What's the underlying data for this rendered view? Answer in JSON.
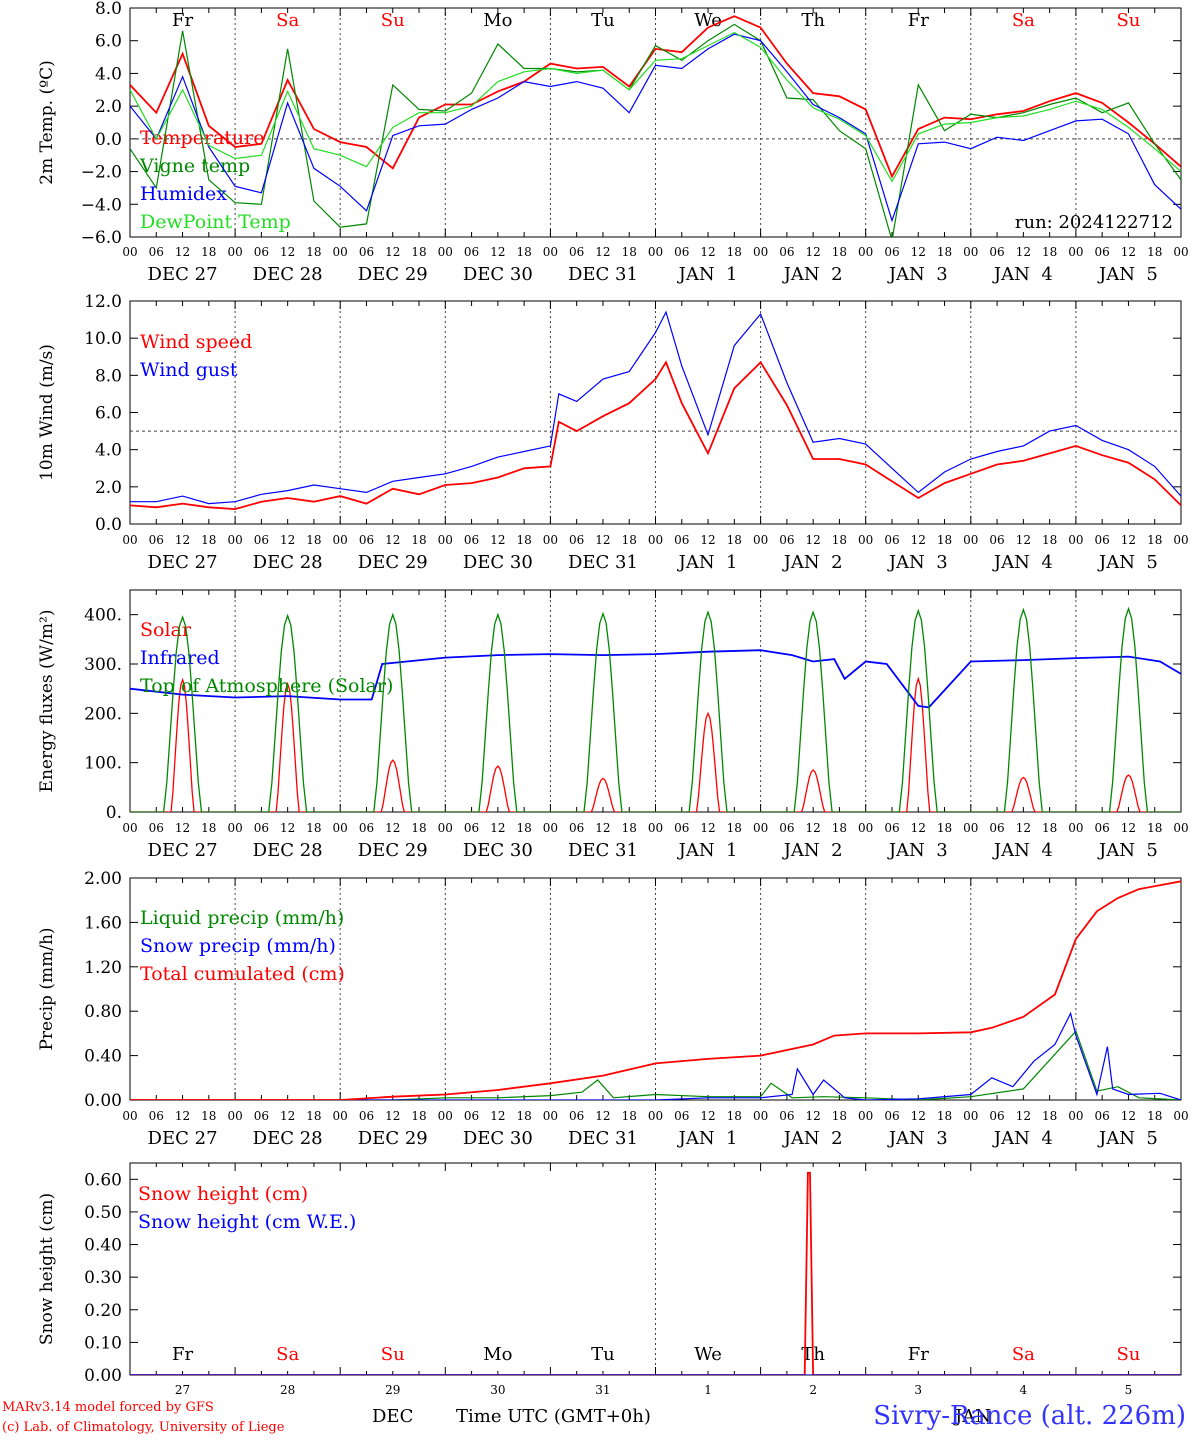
{
  "colors": {
    "red": "#ff0000",
    "green": "#008800",
    "blue": "#0000ff",
    "lime": "#22dd22",
    "black": "#000000"
  },
  "x_axis": {
    "hour_ticks": [
      "00",
      "06",
      "12",
      "18"
    ],
    "date_labels": [
      "DEC 27",
      "DEC 28",
      "DEC 29",
      "DEC 30",
      "DEC 31",
      "JAN  1",
      "JAN  2",
      "JAN  3",
      "JAN  4",
      "JAN  5"
    ],
    "weekdays": [
      "Fr",
      "Sa",
      "Su",
      "Mo",
      "Tu",
      "We",
      "Th",
      "Fr",
      "Sa",
      "Su"
    ],
    "weekend_flags": [
      false,
      true,
      true,
      false,
      false,
      false,
      false,
      false,
      true,
      true
    ],
    "day_numbers": [
      "27",
      "28",
      "29",
      "30",
      "31",
      "1",
      "2",
      "3",
      "4",
      "5"
    ],
    "span_days": 10
  },
  "footer": {
    "model": "MARv3.14 model forced by GFS",
    "credit": "(c) Lab. of Climatology, University of Liege",
    "month_dec": "DEC",
    "month_jan": "JAN",
    "axis_title": "Time UTC (GMT+0h)",
    "station": "Sivry-Rance (alt. 226m)"
  },
  "chart_data": [
    {
      "type": "line",
      "ylabel": "2m Temp. (ºC)",
      "ylim": [
        -6,
        8
      ],
      "yticks": [
        "8.0",
        "6.0",
        "4.0",
        "2.0",
        "0.0",
        "−2.0",
        "−4.0",
        "−6.0"
      ],
      "ytick_values": [
        8,
        6,
        4,
        2,
        0,
        -2,
        -4,
        -6
      ],
      "reference_line": 0,
      "run_label": "run: 2024122712",
      "series": [
        {
          "name": "Temperature",
          "color": "#ff0000",
          "x": [
            0,
            0.25,
            0.5,
            0.75,
            1,
            1.25,
            1.5,
            1.75,
            2,
            2.25,
            2.5,
            2.75,
            3,
            3.25,
            3.5,
            3.75,
            4,
            4.25,
            4.5,
            4.75,
            5,
            5.25,
            5.5,
            5.75,
            6,
            6.25,
            6.5,
            6.75,
            7,
            7.25,
            7.5,
            7.75,
            8,
            8.25,
            8.5,
            8.75,
            9,
            9.25,
            9.5,
            9.75,
            10
          ],
          "y": [
            3.3,
            1.6,
            5.2,
            0.8,
            -0.5,
            -0.3,
            3.6,
            0.6,
            -0.2,
            -0.5,
            -1.8,
            1.3,
            2.1,
            2.1,
            2.9,
            3.5,
            4.6,
            4.3,
            4.4,
            3.2,
            5.5,
            5.3,
            6.8,
            7.5,
            6.8,
            4.6,
            2.8,
            2.6,
            1.8,
            -2.3,
            0.6,
            1.3,
            1.2,
            1.5,
            1.7,
            2.3,
            2.8,
            2.2,
            1.0,
            -0.3,
            -1.7
          ]
        },
        {
          "name": "Vigne temp",
          "color": "#008800",
          "x": [
            0,
            0.25,
            0.5,
            0.75,
            1,
            1.25,
            1.5,
            1.75,
            2,
            2.25,
            2.5,
            2.75,
            3,
            3.25,
            3.5,
            3.75,
            4,
            4.25,
            4.5,
            4.75,
            5,
            5.25,
            5.5,
            5.75,
            6,
            6.25,
            6.5,
            6.75,
            7,
            7.25,
            7.5,
            7.75,
            8,
            8.25,
            8.5,
            8.75,
            9,
            9.25,
            9.5,
            9.75,
            10
          ],
          "y": [
            -0.6,
            -3.0,
            6.6,
            -2.5,
            -3.9,
            -4.0,
            5.5,
            -3.8,
            -5.4,
            -5.2,
            3.3,
            1.8,
            1.7,
            2.8,
            5.8,
            4.3,
            4.3,
            4.1,
            4.2,
            3.0,
            5.7,
            4.8,
            6.0,
            7.0,
            6.0,
            2.5,
            2.4,
            0.5,
            -0.6,
            -6.2,
            3.3,
            0.5,
            1.5,
            1.3,
            1.6,
            2.1,
            2.5,
            1.6,
            2.2,
            -0.3,
            -2.5
          ]
        },
        {
          "name": "Humidex",
          "color": "#0000ff",
          "x": [
            0,
            0.25,
            0.5,
            0.75,
            1,
            1.25,
            1.5,
            1.75,
            2,
            2.25,
            2.5,
            2.75,
            3,
            3.25,
            3.5,
            3.75,
            4,
            4.25,
            4.5,
            4.75,
            5,
            5.25,
            5.5,
            5.75,
            6,
            6.25,
            6.5,
            6.75,
            7,
            7.25,
            7.5,
            7.75,
            8,
            8.25,
            8.5,
            8.75,
            9,
            9.25,
            9.5,
            9.75,
            10
          ],
          "y": [
            2.0,
            0.0,
            3.8,
            -0.5,
            -2.9,
            -3.3,
            2.2,
            -1.8,
            -2.9,
            -4.4,
            0.2,
            0.8,
            0.9,
            1.8,
            2.5,
            3.5,
            3.2,
            3.5,
            3.1,
            1.6,
            4.5,
            4.3,
            5.5,
            6.4,
            6.0,
            4.1,
            2.1,
            1.3,
            0.3,
            -5.0,
            -0.3,
            -0.2,
            -0.6,
            0.1,
            -0.1,
            0.5,
            1.1,
            1.2,
            0.3,
            -2.8,
            -4.3
          ]
        },
        {
          "name": "DewPoint Temp",
          "color": "#22dd22",
          "x": [
            0,
            0.25,
            0.5,
            0.75,
            1,
            1.25,
            1.5,
            1.75,
            2,
            2.25,
            2.5,
            2.75,
            3,
            3.25,
            3.5,
            3.75,
            4,
            4.25,
            4.5,
            4.75,
            5,
            5.25,
            5.5,
            5.75,
            6,
            6.25,
            6.5,
            6.75,
            7,
            7.25,
            7.5,
            7.75,
            8,
            8.25,
            8.5,
            8.75,
            9,
            9.25,
            9.5,
            9.75,
            10
          ],
          "y": [
            3.0,
            0.0,
            3.0,
            -0.4,
            -1.2,
            -1.0,
            2.9,
            -0.6,
            -1.0,
            -1.7,
            0.7,
            1.6,
            1.6,
            2.0,
            3.5,
            4.1,
            4.3,
            4.0,
            4.2,
            3.0,
            4.8,
            4.9,
            5.7,
            6.5,
            5.6,
            3.6,
            1.9,
            1.2,
            0.2,
            -2.6,
            0.3,
            0.9,
            1.0,
            1.3,
            1.4,
            1.8,
            2.3,
            1.8,
            0.7,
            -0.6,
            -2.0
          ]
        }
      ]
    },
    {
      "type": "line",
      "ylabel": "10m Wind (m/s)",
      "ylim": [
        0,
        12
      ],
      "yticks": [
        "12.0",
        "10.0",
        "8.0",
        "6.0",
        "4.0",
        "2.0",
        "0.0"
      ],
      "ytick_values": [
        12,
        10,
        8,
        6,
        4,
        2,
        0
      ],
      "reference_line": 5,
      "series": [
        {
          "name": "Wind speed",
          "color": "#ff0000",
          "x": [
            0,
            0.25,
            0.5,
            0.75,
            1,
            1.25,
            1.5,
            1.75,
            2,
            2.25,
            2.5,
            2.75,
            3,
            3.25,
            3.5,
            3.75,
            4,
            4.08,
            4.25,
            4.5,
            4.75,
            5,
            5.1,
            5.25,
            5.5,
            5.75,
            6,
            6.25,
            6.5,
            6.75,
            7,
            7.25,
            7.5,
            7.75,
            8,
            8.25,
            8.5,
            8.75,
            9,
            9.25,
            9.5,
            9.75,
            10
          ],
          "y": [
            1.0,
            0.9,
            1.1,
            0.9,
            0.8,
            1.2,
            1.4,
            1.2,
            1.5,
            1.1,
            1.9,
            1.6,
            2.1,
            2.2,
            2.5,
            3.0,
            3.1,
            5.5,
            5.0,
            5.8,
            6.5,
            7.8,
            8.7,
            6.5,
            3.8,
            7.3,
            8.7,
            6.4,
            3.5,
            3.5,
            3.2,
            2.3,
            1.4,
            2.2,
            2.7,
            3.2,
            3.4,
            3.8,
            4.2,
            3.7,
            3.3,
            2.4,
            1.0
          ]
        },
        {
          "name": "Wind gust",
          "color": "#0000ff",
          "x": [
            0,
            0.25,
            0.5,
            0.75,
            1,
            1.25,
            1.5,
            1.75,
            2,
            2.25,
            2.5,
            2.75,
            3,
            3.25,
            3.5,
            3.75,
            4,
            4.08,
            4.25,
            4.5,
            4.75,
            5,
            5.1,
            5.25,
            5.5,
            5.75,
            6,
            6.25,
            6.5,
            6.75,
            7,
            7.25,
            7.5,
            7.75,
            8,
            8.25,
            8.5,
            8.75,
            9,
            9.25,
            9.5,
            9.75,
            10
          ],
          "y": [
            1.2,
            1.2,
            1.5,
            1.1,
            1.2,
            1.6,
            1.8,
            2.1,
            1.9,
            1.7,
            2.3,
            2.5,
            2.7,
            3.1,
            3.6,
            3.9,
            4.2,
            7.0,
            6.6,
            7.8,
            8.2,
            10.3,
            11.4,
            8.5,
            4.8,
            9.6,
            11.3,
            7.6,
            4.4,
            4.6,
            4.3,
            3.0,
            1.7,
            2.8,
            3.5,
            3.9,
            4.2,
            5.0,
            5.3,
            4.5,
            4.0,
            3.1,
            1.5
          ]
        }
      ]
    },
    {
      "type": "line",
      "ylabel": "Energy fluxes (W/m²)",
      "ylim": [
        0,
        450
      ],
      "yticks": [
        "400.",
        "300.",
        "200.",
        "100.",
        "0."
      ],
      "ytick_values": [
        400,
        300,
        200,
        100,
        0
      ],
      "series": [
        {
          "name": "Solar",
          "color": "#ff0000",
          "day_centers": [
            0.5,
            1.5,
            2.5,
            3.5,
            4.5,
            5.5,
            6.5,
            7.5,
            8.5,
            9.5
          ],
          "peaks": [
            268,
            260,
            105,
            93,
            68,
            200,
            85,
            270,
            70,
            75
          ]
        },
        {
          "name": "Infrared",
          "color": "#0000ff",
          "x": [
            0,
            0.5,
            1,
            1.5,
            2,
            2.3,
            2.4,
            3,
            3.5,
            4,
            4.5,
            5,
            5.3,
            5.5,
            6,
            6.3,
            6.5,
            6.7,
            6.8,
            7,
            7.2,
            7.5,
            7.6,
            8,
            8.5,
            9,
            9.5,
            9.8,
            10
          ],
          "y": [
            250,
            238,
            232,
            235,
            228,
            228,
            300,
            313,
            318,
            320,
            318,
            320,
            323,
            325,
            328,
            318,
            305,
            310,
            270,
            305,
            300,
            215,
            212,
            305,
            308,
            312,
            315,
            305,
            280
          ]
        },
        {
          "name": "Top of Atmosphere (Solar)",
          "color": "#008800",
          "day_centers": [
            0.5,
            1.5,
            2.5,
            3.5,
            4.5,
            5.5,
            6.5,
            7.5,
            8.5,
            9.5
          ],
          "peaks": [
            395,
            398,
            400,
            400,
            402,
            405,
            405,
            408,
            410,
            412
          ]
        }
      ]
    },
    {
      "type": "line",
      "ylabel": "Precip (mm/h)",
      "ylim": [
        0,
        2
      ],
      "yticks": [
        "2.00",
        "1.60",
        "1.20",
        "0.80",
        "0.40",
        "0.00"
      ],
      "ytick_values": [
        2.0,
        1.6,
        1.2,
        0.8,
        0.4,
        0.0
      ],
      "series": [
        {
          "name": "Liquid precip (mm/h)",
          "color": "#008800",
          "x": [
            0,
            2.5,
            3,
            3.5,
            4,
            4.3,
            4.45,
            4.6,
            5,
            5.5,
            6,
            6.1,
            6.3,
            6.6,
            7,
            7.5,
            8,
            8.5,
            9,
            9.2,
            9.4,
            9.6,
            10
          ],
          "y": [
            0,
            0,
            0.02,
            0.02,
            0.04,
            0.07,
            0.18,
            0.02,
            0.05,
            0.03,
            0.03,
            0.15,
            0.02,
            0.03,
            0.02,
            0.0,
            0.03,
            0.1,
            0.62,
            0.08,
            0.12,
            0.02,
            0.0
          ]
        },
        {
          "name": "Snow precip (mm/h)",
          "color": "#0000ff",
          "x": [
            0,
            5,
            5.5,
            6,
            6.3,
            6.35,
            6.5,
            6.6,
            6.8,
            7,
            7.5,
            8,
            8.2,
            8.4,
            8.6,
            8.8,
            8.95,
            9,
            9.2,
            9.3,
            9.35,
            9.5,
            9.8,
            10
          ],
          "y": [
            0,
            0,
            0.02,
            0.02,
            0.05,
            0.28,
            0.05,
            0.18,
            0.02,
            0.0,
            0.01,
            0.05,
            0.2,
            0.12,
            0.35,
            0.5,
            0.78,
            0.58,
            0.05,
            0.48,
            0.1,
            0.05,
            0.06,
            0.0
          ]
        },
        {
          "name": "Total cumulated (cm)",
          "color": "#ff0000",
          "x": [
            0,
            2,
            2.5,
            3,
            3.5,
            4,
            4.5,
            5,
            5.5,
            6,
            6.5,
            6.7,
            7,
            7.5,
            8,
            8.2,
            8.5,
            8.8,
            9,
            9.2,
            9.4,
            9.6,
            10
          ],
          "y": [
            0,
            0,
            0.03,
            0.05,
            0.09,
            0.15,
            0.22,
            0.33,
            0.37,
            0.4,
            0.5,
            0.58,
            0.6,
            0.6,
            0.61,
            0.65,
            0.75,
            0.95,
            1.45,
            1.7,
            1.82,
            1.9,
            1.97
          ]
        }
      ]
    },
    {
      "type": "line",
      "ylabel": "Snow height (cm)",
      "ylim": [
        0,
        0.65
      ],
      "yticks": [
        "0.60",
        "0.50",
        "0.40",
        "0.30",
        "0.20",
        "0.10",
        "0.00"
      ],
      "ytick_values": [
        0.6,
        0.5,
        0.4,
        0.3,
        0.2,
        0.1,
        0.0
      ],
      "series": [
        {
          "name": "Snow height (cm)",
          "color": "#ff0000",
          "x": [
            0,
            6.42,
            6.45,
            6.47,
            6.5,
            10
          ],
          "y": [
            0,
            0,
            0.62,
            0.62,
            0,
            0
          ]
        },
        {
          "name": "Snow height (cm W.E.)",
          "color": "#0000ff",
          "x": [
            0,
            10
          ],
          "y": [
            0,
            0
          ]
        }
      ]
    }
  ]
}
